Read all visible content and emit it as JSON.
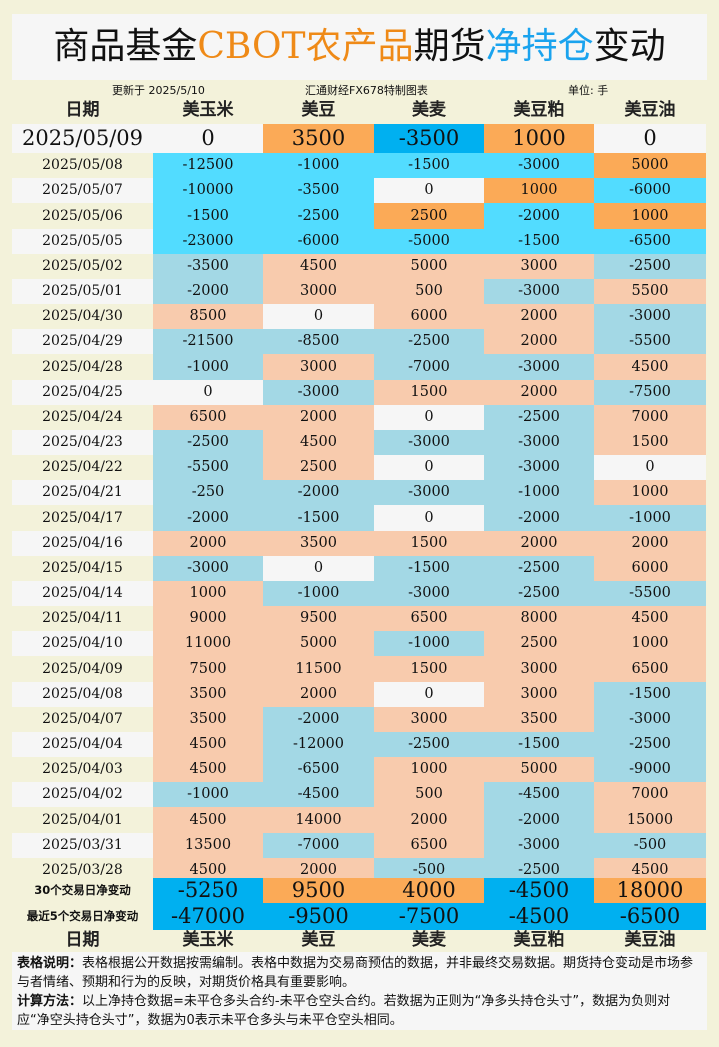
{
  "title": {
    "part1": "商品基金",
    "part2": "CBOT农产品",
    "part3": "期货",
    "part4": "净持仓",
    "part5": "变动"
  },
  "meta": {
    "updated": "更新于 2025/5/10",
    "source": "汇通财经FX678特制图表",
    "unit": "单位: 手"
  },
  "columns": [
    "日期",
    "美玉米",
    "美豆",
    "美麦",
    "美豆粕",
    "美豆油"
  ],
  "colors": {
    "background": "#f3f2da",
    "neutral": "#f6f6f6",
    "latest_positive": "#fbaa57",
    "latest_negative": "#00b0f0",
    "recent_positive": "#fbaa57",
    "recent_negative": "#52dcff",
    "older_positive": "#f8cbad",
    "older_negative": "#a3d8e5",
    "title_orange": "#ef8a17",
    "title_blue": "#1aa3ee"
  },
  "latest": {
    "date": "2025/05/09",
    "values": [
      0,
      3500,
      -3500,
      1000,
      0
    ]
  },
  "rows": [
    {
      "date": "2025/05/08",
      "recent": true,
      "values": [
        -12500,
        -1000,
        -1500,
        -3000,
        5000
      ]
    },
    {
      "date": "2025/05/07",
      "recent": true,
      "values": [
        -10000,
        -3500,
        0,
        1000,
        -6000
      ]
    },
    {
      "date": "2025/05/06",
      "recent": true,
      "values": [
        -1500,
        -2500,
        2500,
        -2000,
        1000
      ]
    },
    {
      "date": "2025/05/05",
      "recent": true,
      "values": [
        -23000,
        -6000,
        -5000,
        -1500,
        -6500
      ]
    },
    {
      "date": "2025/05/02",
      "values": [
        -3500,
        4500,
        5000,
        3000,
        -2500
      ]
    },
    {
      "date": "2025/05/01",
      "values": [
        -2000,
        3000,
        500,
        -3000,
        5500
      ]
    },
    {
      "date": "2025/04/30",
      "values": [
        8500,
        0,
        6000,
        2000,
        -3000
      ]
    },
    {
      "date": "2025/04/29",
      "values": [
        -21500,
        -8500,
        -2500,
        2000,
        -5500
      ]
    },
    {
      "date": "2025/04/28",
      "values": [
        -1000,
        3000,
        -7000,
        -3000,
        4500
      ]
    },
    {
      "date": "2025/04/25",
      "values": [
        0,
        -3000,
        1500,
        2000,
        -7500
      ]
    },
    {
      "date": "2025/04/24",
      "values": [
        6500,
        2000,
        0,
        -2500,
        7000
      ]
    },
    {
      "date": "2025/04/23",
      "values": [
        -2500,
        4500,
        -3000,
        -3000,
        1500
      ]
    },
    {
      "date": "2025/04/22",
      "values": [
        -5500,
        2500,
        0,
        -3000,
        0
      ]
    },
    {
      "date": "2025/04/21",
      "values": [
        -250,
        -2000,
        -3000,
        -1000,
        1000
      ]
    },
    {
      "date": "2025/04/17",
      "values": [
        -2000,
        -1500,
        0,
        -2000,
        -1000
      ]
    },
    {
      "date": "2025/04/16",
      "values": [
        2000,
        3500,
        1500,
        2000,
        2000
      ]
    },
    {
      "date": "2025/04/15",
      "values": [
        -3000,
        0,
        -1500,
        -2500,
        6000
      ]
    },
    {
      "date": "2025/04/14",
      "values": [
        1000,
        -1000,
        -3000,
        -2500,
        -5500
      ]
    },
    {
      "date": "2025/04/11",
      "values": [
        9000,
        9500,
        6500,
        8000,
        4500
      ]
    },
    {
      "date": "2025/04/10",
      "values": [
        11000,
        5000,
        -1000,
        2500,
        1000
      ]
    },
    {
      "date": "2025/04/09",
      "values": [
        7500,
        11500,
        1500,
        3000,
        6500
      ]
    },
    {
      "date": "2025/04/08",
      "values": [
        3500,
        2000,
        0,
        3000,
        -1500
      ]
    },
    {
      "date": "2025/04/07",
      "values": [
        3500,
        -2000,
        3000,
        3500,
        -3000
      ]
    },
    {
      "date": "2025/04/04",
      "values": [
        4500,
        -12000,
        -2500,
        -1500,
        -2500
      ]
    },
    {
      "date": "2025/04/03",
      "values": [
        4500,
        -6500,
        1000,
        5000,
        -9000
      ]
    },
    {
      "date": "2025/04/02",
      "values": [
        -1000,
        -4500,
        500,
        -4500,
        7000
      ]
    },
    {
      "date": "2025/04/01",
      "values": [
        4500,
        14000,
        2000,
        -2000,
        15000
      ]
    },
    {
      "date": "2025/03/31",
      "values": [
        13500,
        -7000,
        6500,
        -3000,
        -500
      ]
    },
    {
      "date": "2025/03/28",
      "values": [
        4500,
        2000,
        -500,
        -2500,
        4500
      ]
    }
  ],
  "summary": [
    {
      "label": "30个交易日净变动",
      "values": [
        -5250,
        9500,
        4000,
        -4500,
        18000
      ]
    },
    {
      "label": "最近5个交易日净变动",
      "values": [
        -47000,
        -9500,
        -7500,
        -4500,
        -6500
      ]
    }
  ],
  "notes": {
    "desc_label": "表格说明：",
    "desc_text": "表格根据公开数据按需编制。表格中数据为交易商预估的数据，并非最终交易数据。期货持仓变动是市场参与者情绪、预期和行为的反映，对期货价格具有重要影响。",
    "calc_label": "计算方法：",
    "calc_text": "以上净持仓数据=未平仓多头合约-未平仓空头合约。若数据为正则为“净多头持仓头寸”，数据为负则对应“净空头持仓头寸”，数据为0表示未平仓多头与未平仓空头相同。"
  }
}
